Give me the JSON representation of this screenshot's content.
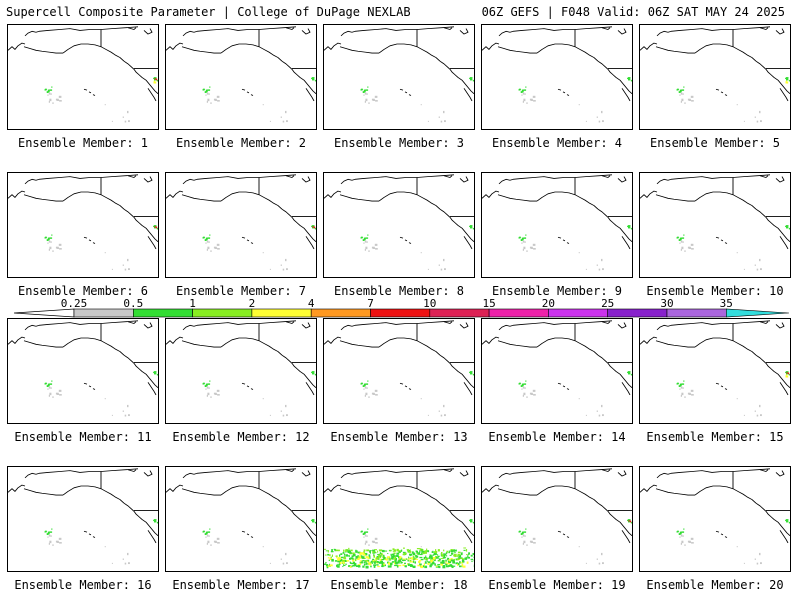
{
  "header": {
    "left": "Supercell Composite Parameter | College of DuPage NEXLAB",
    "right": "06Z GEFS | F048 Valid: 06Z SAT MAY 24 2025"
  },
  "members": [
    {
      "label": "Ensemble Member: 1"
    },
    {
      "label": "Ensemble Member: 2"
    },
    {
      "label": "Ensemble Member: 3"
    },
    {
      "label": "Ensemble Member: 4"
    },
    {
      "label": "Ensemble Member: 5"
    },
    {
      "label": "Ensemble Member: 6"
    },
    {
      "label": "Ensemble Member: 7"
    },
    {
      "label": "Ensemble Member: 8"
    },
    {
      "label": "Ensemble Member: 9"
    },
    {
      "label": "Ensemble Member: 10"
    },
    {
      "label": "Ensemble Member: 11"
    },
    {
      "label": "Ensemble Member: 12"
    },
    {
      "label": "Ensemble Member: 13"
    },
    {
      "label": "Ensemble Member: 14"
    },
    {
      "label": "Ensemble Member: 15"
    },
    {
      "label": "Ensemble Member: 16"
    },
    {
      "label": "Ensemble Member: 17"
    },
    {
      "label": "Ensemble Member: 18"
    },
    {
      "label": "Ensemble Member: 19"
    },
    {
      "label": "Ensemble Member: 20"
    }
  ],
  "colorbar": {
    "ticks": [
      "0.25",
      "0.5",
      "1",
      "2",
      "4",
      "7",
      "10",
      "15",
      "20",
      "25",
      "30",
      "35"
    ],
    "colors": [
      "#c8c8c8",
      "#33dd33",
      "#88ee22",
      "#ffff33",
      "#ff9922",
      "#ee1111",
      "#dd2255",
      "#ee22aa",
      "#cc33ee",
      "#8822cc",
      "#aa66dd",
      "#33dddd"
    ]
  }
}
